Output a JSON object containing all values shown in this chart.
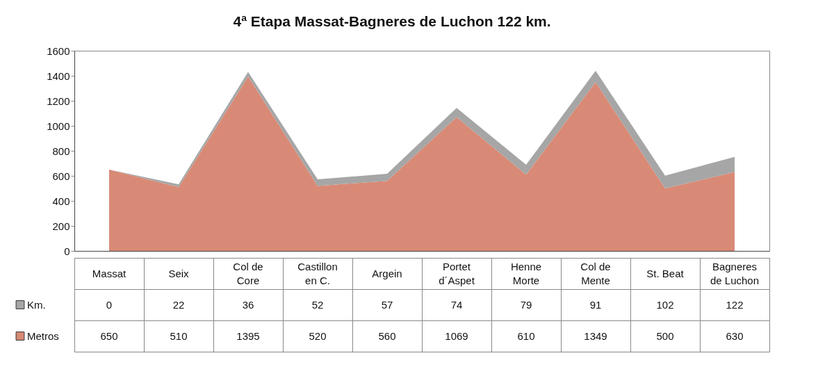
{
  "chart_data": {
    "type": "area",
    "title": "4ª Etapa  Massat-Bagneres de Luchon  122 km.",
    "categories": [
      "Massat",
      "Seix",
      "Col de Core",
      "Castillon en C.",
      "Argein",
      "Portet d´Aspet",
      "Henne Morte",
      "Col de Mente",
      "St. Beat",
      "Bagneres de Luchon"
    ],
    "series": [
      {
        "name": "Metros",
        "color": "#d98a76",
        "values": [
          650,
          510,
          1395,
          520,
          560,
          1069,
          610,
          1349,
          500,
          630
        ]
      },
      {
        "name": "Km.",
        "color": "#a6a6a6",
        "values": [
          0,
          22,
          36,
          52,
          57,
          74,
          79,
          91,
          102,
          122
        ]
      }
    ],
    "stacked": true,
    "ylim": [
      0,
      1600
    ],
    "yticks": [
      0,
      200,
      400,
      600,
      800,
      1000,
      1200,
      1400,
      1600
    ],
    "data_labels": true,
    "legend": "bottom left"
  }
}
